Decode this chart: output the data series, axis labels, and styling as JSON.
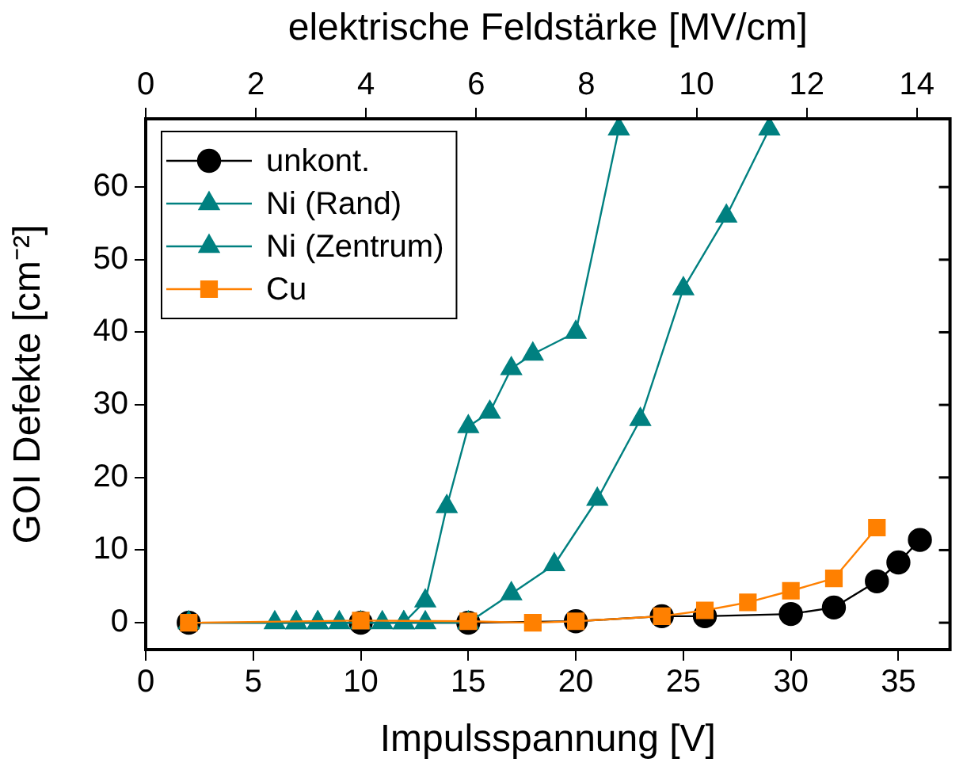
{
  "chart_data": {
    "type": "line",
    "xlabel": "Impulsspannung [V]",
    "ylabel": "GOI Defekte [cm⁻²]",
    "x2label": "elektrische Feldstärke [MV/cm]",
    "xlim": [
      0,
      37.4
    ],
    "xticks": [
      0,
      5,
      10,
      15,
      20,
      25,
      30,
      35
    ],
    "x2lim": [
      0,
      14.6
    ],
    "x2ticks": [
      0,
      2,
      4,
      6,
      8,
      10,
      12,
      14
    ],
    "ylim": [
      -3.7,
      69.4
    ],
    "yticks": [
      0,
      10,
      20,
      30,
      40,
      50,
      60
    ],
    "grid": false,
    "legend": "top left",
    "line_style": "solid",
    "series": [
      {
        "name": "unkont.",
        "color": "#000000",
        "marker": "circle",
        "x": [
          2,
          10,
          15,
          20,
          24,
          26,
          30,
          32,
          34,
          35,
          36
        ],
        "values": [
          0,
          0,
          0,
          0.2,
          0.9,
          0.9,
          1.2,
          2.1,
          5.7,
          8.3,
          11.4
        ]
      },
      {
        "name": "Ni (Rand)",
        "color": "#008080",
        "marker": "triangle",
        "x": [
          2,
          7,
          8,
          9,
          11,
          12,
          13,
          14,
          15,
          16,
          17,
          18,
          20,
          22
        ],
        "values": [
          0,
          0,
          0,
          0,
          0,
          0,
          3,
          16,
          27,
          29,
          35,
          37,
          40,
          68
        ]
      },
      {
        "name": "Ni (Zentrum)",
        "color": "#008080",
        "marker": "triangle",
        "x": [
          6,
          7,
          8,
          10,
          12,
          13,
          15,
          17,
          19,
          21,
          23,
          25,
          27,
          29
        ],
        "values": [
          0,
          0,
          0,
          0,
          0,
          0,
          0,
          4,
          8,
          17,
          28,
          46,
          56,
          68
        ]
      },
      {
        "name": "Cu",
        "color": "#ff8000",
        "marker": "square",
        "x": [
          2,
          10,
          15,
          18,
          20,
          24,
          26,
          28,
          30,
          32,
          34
        ],
        "values": [
          0,
          0.3,
          0.2,
          0,
          0.2,
          0.9,
          1.7,
          2.8,
          4.4,
          6.1,
          13.1
        ]
      }
    ]
  }
}
